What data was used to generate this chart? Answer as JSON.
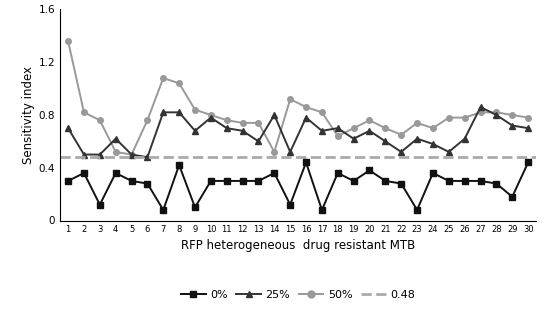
{
  "x": [
    1,
    2,
    3,
    4,
    5,
    6,
    7,
    8,
    9,
    10,
    11,
    12,
    13,
    14,
    15,
    16,
    17,
    18,
    19,
    20,
    21,
    22,
    23,
    24,
    25,
    26,
    27,
    28,
    29,
    30
  ],
  "series_0pct": [
    0.3,
    0.36,
    0.12,
    0.36,
    0.3,
    0.28,
    0.08,
    0.42,
    0.1,
    0.3,
    0.3,
    0.3,
    0.3,
    0.36,
    0.12,
    0.44,
    0.08,
    0.36,
    0.3,
    0.38,
    0.3,
    0.28,
    0.08,
    0.36,
    0.3,
    0.3,
    0.3,
    0.28,
    0.18,
    0.44
  ],
  "series_25pct": [
    0.7,
    0.5,
    0.5,
    0.62,
    0.5,
    0.48,
    0.82,
    0.82,
    0.68,
    0.78,
    0.7,
    0.68,
    0.6,
    0.8,
    0.52,
    0.78,
    0.68,
    0.7,
    0.62,
    0.68,
    0.6,
    0.52,
    0.62,
    0.58,
    0.52,
    0.62,
    0.86,
    0.8,
    0.72,
    0.7
  ],
  "series_50pct": [
    1.36,
    0.82,
    0.76,
    0.52,
    0.5,
    0.76,
    1.08,
    1.04,
    0.84,
    0.8,
    0.76,
    0.74,
    0.74,
    0.52,
    0.92,
    0.86,
    0.82,
    0.64,
    0.7,
    0.76,
    0.7,
    0.65,
    0.74,
    0.7,
    0.78,
    0.78,
    0.82,
    0.82,
    0.8,
    0.78
  ],
  "threshold": 0.48,
  "ylim": [
    0,
    1.6
  ],
  "yticks": [
    0,
    0.4,
    0.8,
    1.2,
    1.6
  ],
  "xlabel": "RFP heterogeneous  drug resistant MTB",
  "ylabel": "Sensitivity index",
  "color_0pct": "#111111",
  "color_25pct": "#333333",
  "color_50pct": "#999999",
  "color_threshold": "#aaaaaa",
  "marker_0pct": "s",
  "marker_25pct": "^",
  "marker_50pct": "o",
  "linewidth": 1.4,
  "markersize": 4,
  "legend_labels": [
    "0%",
    "25%",
    "50%",
    "0.48"
  ]
}
